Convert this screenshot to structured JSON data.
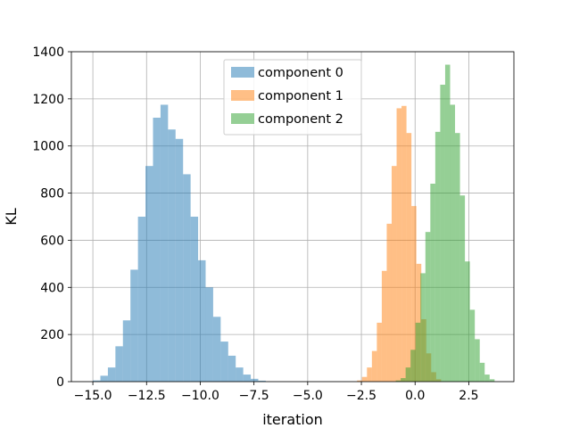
{
  "chart_data": {
    "type": "histogram",
    "title": "",
    "xlabel": "iteration",
    "ylabel": "KL",
    "xlim": [
      -16.0,
      4.6
    ],
    "ylim": [
      0,
      1400
    ],
    "xticks": [
      -15.0,
      -12.5,
      -10.0,
      -7.5,
      -5.0,
      -2.5,
      0.0,
      2.5
    ],
    "xtick_labels": [
      "−15.0",
      "−12.5",
      "−10.0",
      "−7.5",
      "−5.0",
      "−2.5",
      "0.0",
      "2.5"
    ],
    "yticks": [
      0,
      200,
      400,
      600,
      800,
      1000,
      1200,
      1400
    ],
    "ytick_labels": [
      "0",
      "200",
      "400",
      "600",
      "800",
      "1000",
      "1200",
      "1400"
    ],
    "grid": true,
    "legend_position": "top-center",
    "bar_alpha": 0.5,
    "series": [
      {
        "name": "component 0",
        "color": "#1f77b4",
        "bin_width": 0.35,
        "bins": [
          [
            -15.0,
            5
          ],
          [
            -14.65,
            25
          ],
          [
            -14.3,
            60
          ],
          [
            -13.95,
            150
          ],
          [
            -13.6,
            260
          ],
          [
            -13.25,
            475
          ],
          [
            -12.9,
            700
          ],
          [
            -12.55,
            915
          ],
          [
            -12.2,
            1120
          ],
          [
            -11.85,
            1175
          ],
          [
            -11.5,
            1070
          ],
          [
            -11.15,
            1030
          ],
          [
            -10.8,
            880
          ],
          [
            -10.45,
            700
          ],
          [
            -10.1,
            515
          ],
          [
            -9.75,
            400
          ],
          [
            -9.4,
            275
          ],
          [
            -9.05,
            170
          ],
          [
            -8.7,
            110
          ],
          [
            -8.35,
            60
          ],
          [
            -8.0,
            30
          ],
          [
            -7.65,
            12
          ],
          [
            -7.3,
            4
          ]
        ]
      },
      {
        "name": "component 1",
        "color": "#ff7f0e",
        "bin_width": 0.23,
        "bins": [
          [
            -2.7,
            5
          ],
          [
            -2.47,
            20
          ],
          [
            -2.24,
            60
          ],
          [
            -2.01,
            130
          ],
          [
            -1.78,
            250
          ],
          [
            -1.55,
            470
          ],
          [
            -1.32,
            670
          ],
          [
            -1.09,
            915
          ],
          [
            -0.86,
            1160
          ],
          [
            -0.63,
            1170
          ],
          [
            -0.4,
            1055
          ],
          [
            -0.17,
            745
          ],
          [
            0.06,
            500
          ],
          [
            0.29,
            265
          ],
          [
            0.52,
            120
          ],
          [
            0.75,
            40
          ],
          [
            0.98,
            10
          ]
        ]
      },
      {
        "name": "component 2",
        "color": "#2ca02c",
        "bin_width": 0.23,
        "bins": [
          [
            -0.9,
            5
          ],
          [
            -0.67,
            15
          ],
          [
            -0.44,
            60
          ],
          [
            -0.21,
            135
          ],
          [
            0.02,
            250
          ],
          [
            0.25,
            460
          ],
          [
            0.48,
            635
          ],
          [
            0.71,
            840
          ],
          [
            0.94,
            1060
          ],
          [
            1.17,
            1260
          ],
          [
            1.4,
            1345
          ],
          [
            1.63,
            1175
          ],
          [
            1.86,
            1055
          ],
          [
            2.09,
            790
          ],
          [
            2.32,
            510
          ],
          [
            2.55,
            305
          ],
          [
            2.78,
            180
          ],
          [
            3.01,
            80
          ],
          [
            3.24,
            30
          ],
          [
            3.47,
            10
          ]
        ]
      }
    ]
  }
}
